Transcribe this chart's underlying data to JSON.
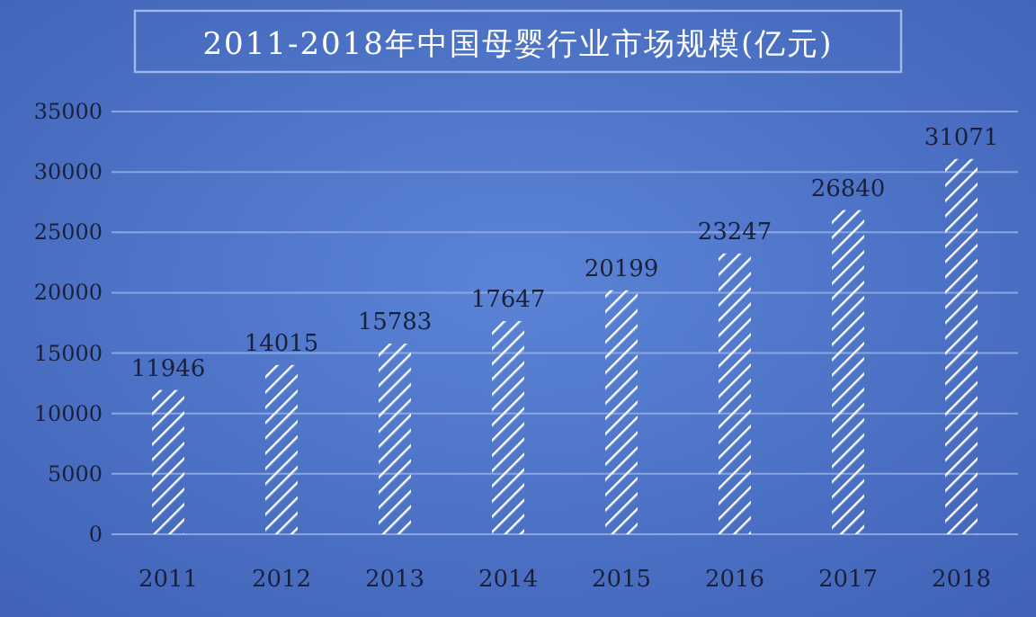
{
  "chart_data": {
    "type": "bar",
    "title": "2011-2018年中国母婴行业市场规模(亿元)",
    "categories": [
      "2011",
      "2012",
      "2013",
      "2014",
      "2015",
      "2016",
      "2017",
      "2018"
    ],
    "values": [
      11946,
      14015,
      15783,
      17647,
      20199,
      23247,
      26840,
      31071
    ],
    "color": "#ffffff",
    "ylim": [
      0,
      35000
    ],
    "yticks": [
      0,
      5000,
      10000,
      15000,
      20000,
      25000,
      30000,
      35000
    ],
    "grid": "y",
    "data_labels": true
  }
}
